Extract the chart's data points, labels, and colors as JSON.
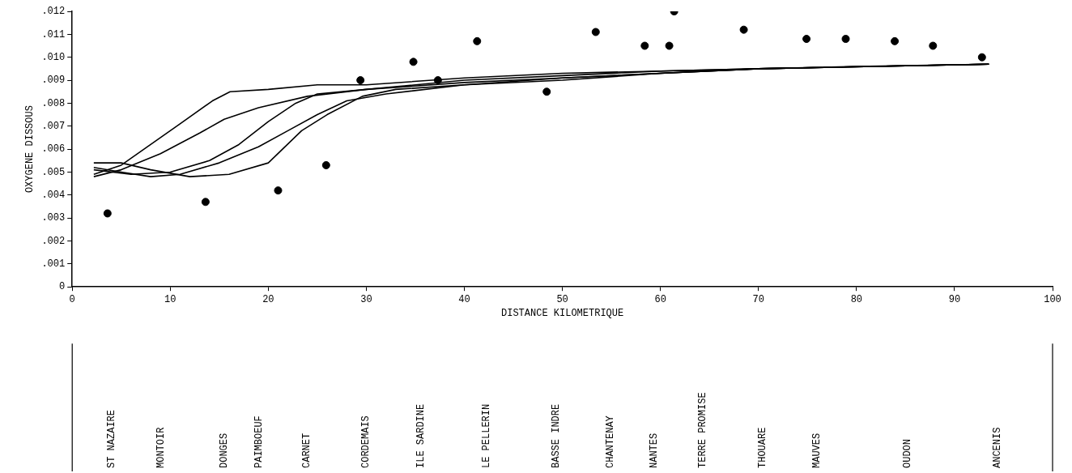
{
  "chart_data": {
    "type": "line",
    "xlabel": "DISTANCE KILOMETRIQUE",
    "ylabel": "OXYGENE DISSOUS",
    "xlim": [
      0,
      100
    ],
    "xticks": [
      0,
      10,
      20,
      30,
      40,
      50,
      60,
      70,
      80,
      90,
      100
    ],
    "ylim": [
      0,
      0.012
    ],
    "yticks": [
      0,
      {
        "value": 0.001,
        "label": ".001"
      },
      {
        "value": 0.002,
        "label": ".002"
      },
      {
        "value": 0.003,
        "label": ".003"
      },
      {
        "value": 0.004,
        "label": ".004"
      },
      {
        "value": 0.005,
        "label": ".005"
      },
      {
        "value": 0.006,
        "label": ".006"
      },
      {
        "value": 0.007,
        "label": ".007"
      },
      {
        "value": 0.008,
        "label": ".008"
      },
      {
        "value": 0.009,
        "label": ".009"
      },
      {
        "value": 0.01,
        "label": ".010"
      },
      {
        "value": 0.011,
        "label": ".011"
      },
      {
        "value": 0.012,
        "label": ".012"
      }
    ],
    "grid": false,
    "legend": false,
    "line_style": "solid",
    "marker": "none",
    "series": [
      {
        "type": "scatter",
        "color": "#000000",
        "marker": "circle",
        "x": [
          3.6,
          13.6,
          21.0,
          25.9,
          29.4,
          34.8,
          37.3,
          41.3,
          48.4,
          53.4,
          58.4,
          60.9,
          61.4,
          68.5,
          74.9,
          78.9,
          83.9,
          87.8,
          92.8
        ],
        "values": [
          0.0032,
          0.0037,
          0.0042,
          0.0053,
          0.009,
          0.0098,
          0.009,
          0.0107,
          0.0085,
          0.0111,
          0.0105,
          0.0105,
          0.012,
          0.0112,
          0.0108,
          0.0108,
          0.0107,
          0.0105,
          0.01
        ]
      },
      {
        "type": "line",
        "color": "#000000",
        "x": [
          2.2,
          5,
          8,
          11,
          14.3,
          16.1,
          20,
          25,
          30,
          40,
          50,
          60,
          70,
          80,
          93.5
        ],
        "values": [
          0.0049,
          0.0053,
          0.0062,
          0.0071,
          0.0081,
          0.0085,
          0.0086,
          0.0088,
          0.0088,
          0.0091,
          0.0093,
          0.0094,
          0.0095,
          0.0096,
          0.0097
        ]
      },
      {
        "type": "line",
        "color": "#000000",
        "x": [
          2.2,
          5,
          9,
          13,
          15.5,
          19,
          24,
          30,
          40,
          50,
          60,
          70,
          93.5
        ],
        "values": [
          0.0048,
          0.0051,
          0.0058,
          0.0067,
          0.0073,
          0.0078,
          0.0083,
          0.0086,
          0.009,
          0.0092,
          0.0094,
          0.0095,
          0.0097
        ]
      },
      {
        "type": "line",
        "color": "#000000",
        "x": [
          2.2,
          6,
          10,
          14,
          17,
          20,
          22.8,
          25,
          30,
          40,
          50,
          60,
          70,
          93.5
        ],
        "values": [
          0.0051,
          0.0049,
          0.005,
          0.0055,
          0.0062,
          0.0072,
          0.008,
          0.0084,
          0.0086,
          0.0089,
          0.0091,
          0.0093,
          0.0095,
          0.0097
        ]
      },
      {
        "type": "line",
        "color": "#000000",
        "x": [
          2.2,
          5,
          8,
          11,
          15,
          19,
          22,
          25,
          28,
          32,
          40,
          50,
          60,
          70,
          93.5
        ],
        "values": [
          0.0052,
          0.005,
          0.0048,
          0.0049,
          0.0054,
          0.0061,
          0.0068,
          0.0075,
          0.0081,
          0.0084,
          0.0088,
          0.009,
          0.0093,
          0.0095,
          0.0097
        ]
      },
      {
        "type": "line",
        "color": "#000000",
        "x": [
          2.2,
          5,
          8,
          12,
          16,
          20,
          23.4,
          26,
          29.6,
          33,
          40,
          50,
          60,
          70,
          93.5
        ],
        "values": [
          0.0054,
          0.0054,
          0.0051,
          0.0048,
          0.0049,
          0.0054,
          0.0068,
          0.0075,
          0.0083,
          0.0086,
          0.0088,
          0.0091,
          0.0093,
          0.0095,
          0.0097
        ]
      }
    ],
    "annotations": [
      "ST NAZAIRE",
      "MONTOIR",
      "DONGES",
      "PAIMBOEUF",
      "CARNET",
      "CORDEMAIS",
      "ILE SARDINE",
      "LE PELLERIN",
      "BASSE INDRE",
      "CHANTENAY",
      "NANTES",
      "TERRE PROMISE",
      "THOUARE",
      "MAUVES",
      "OUDON",
      "ANCENIS"
    ]
  }
}
